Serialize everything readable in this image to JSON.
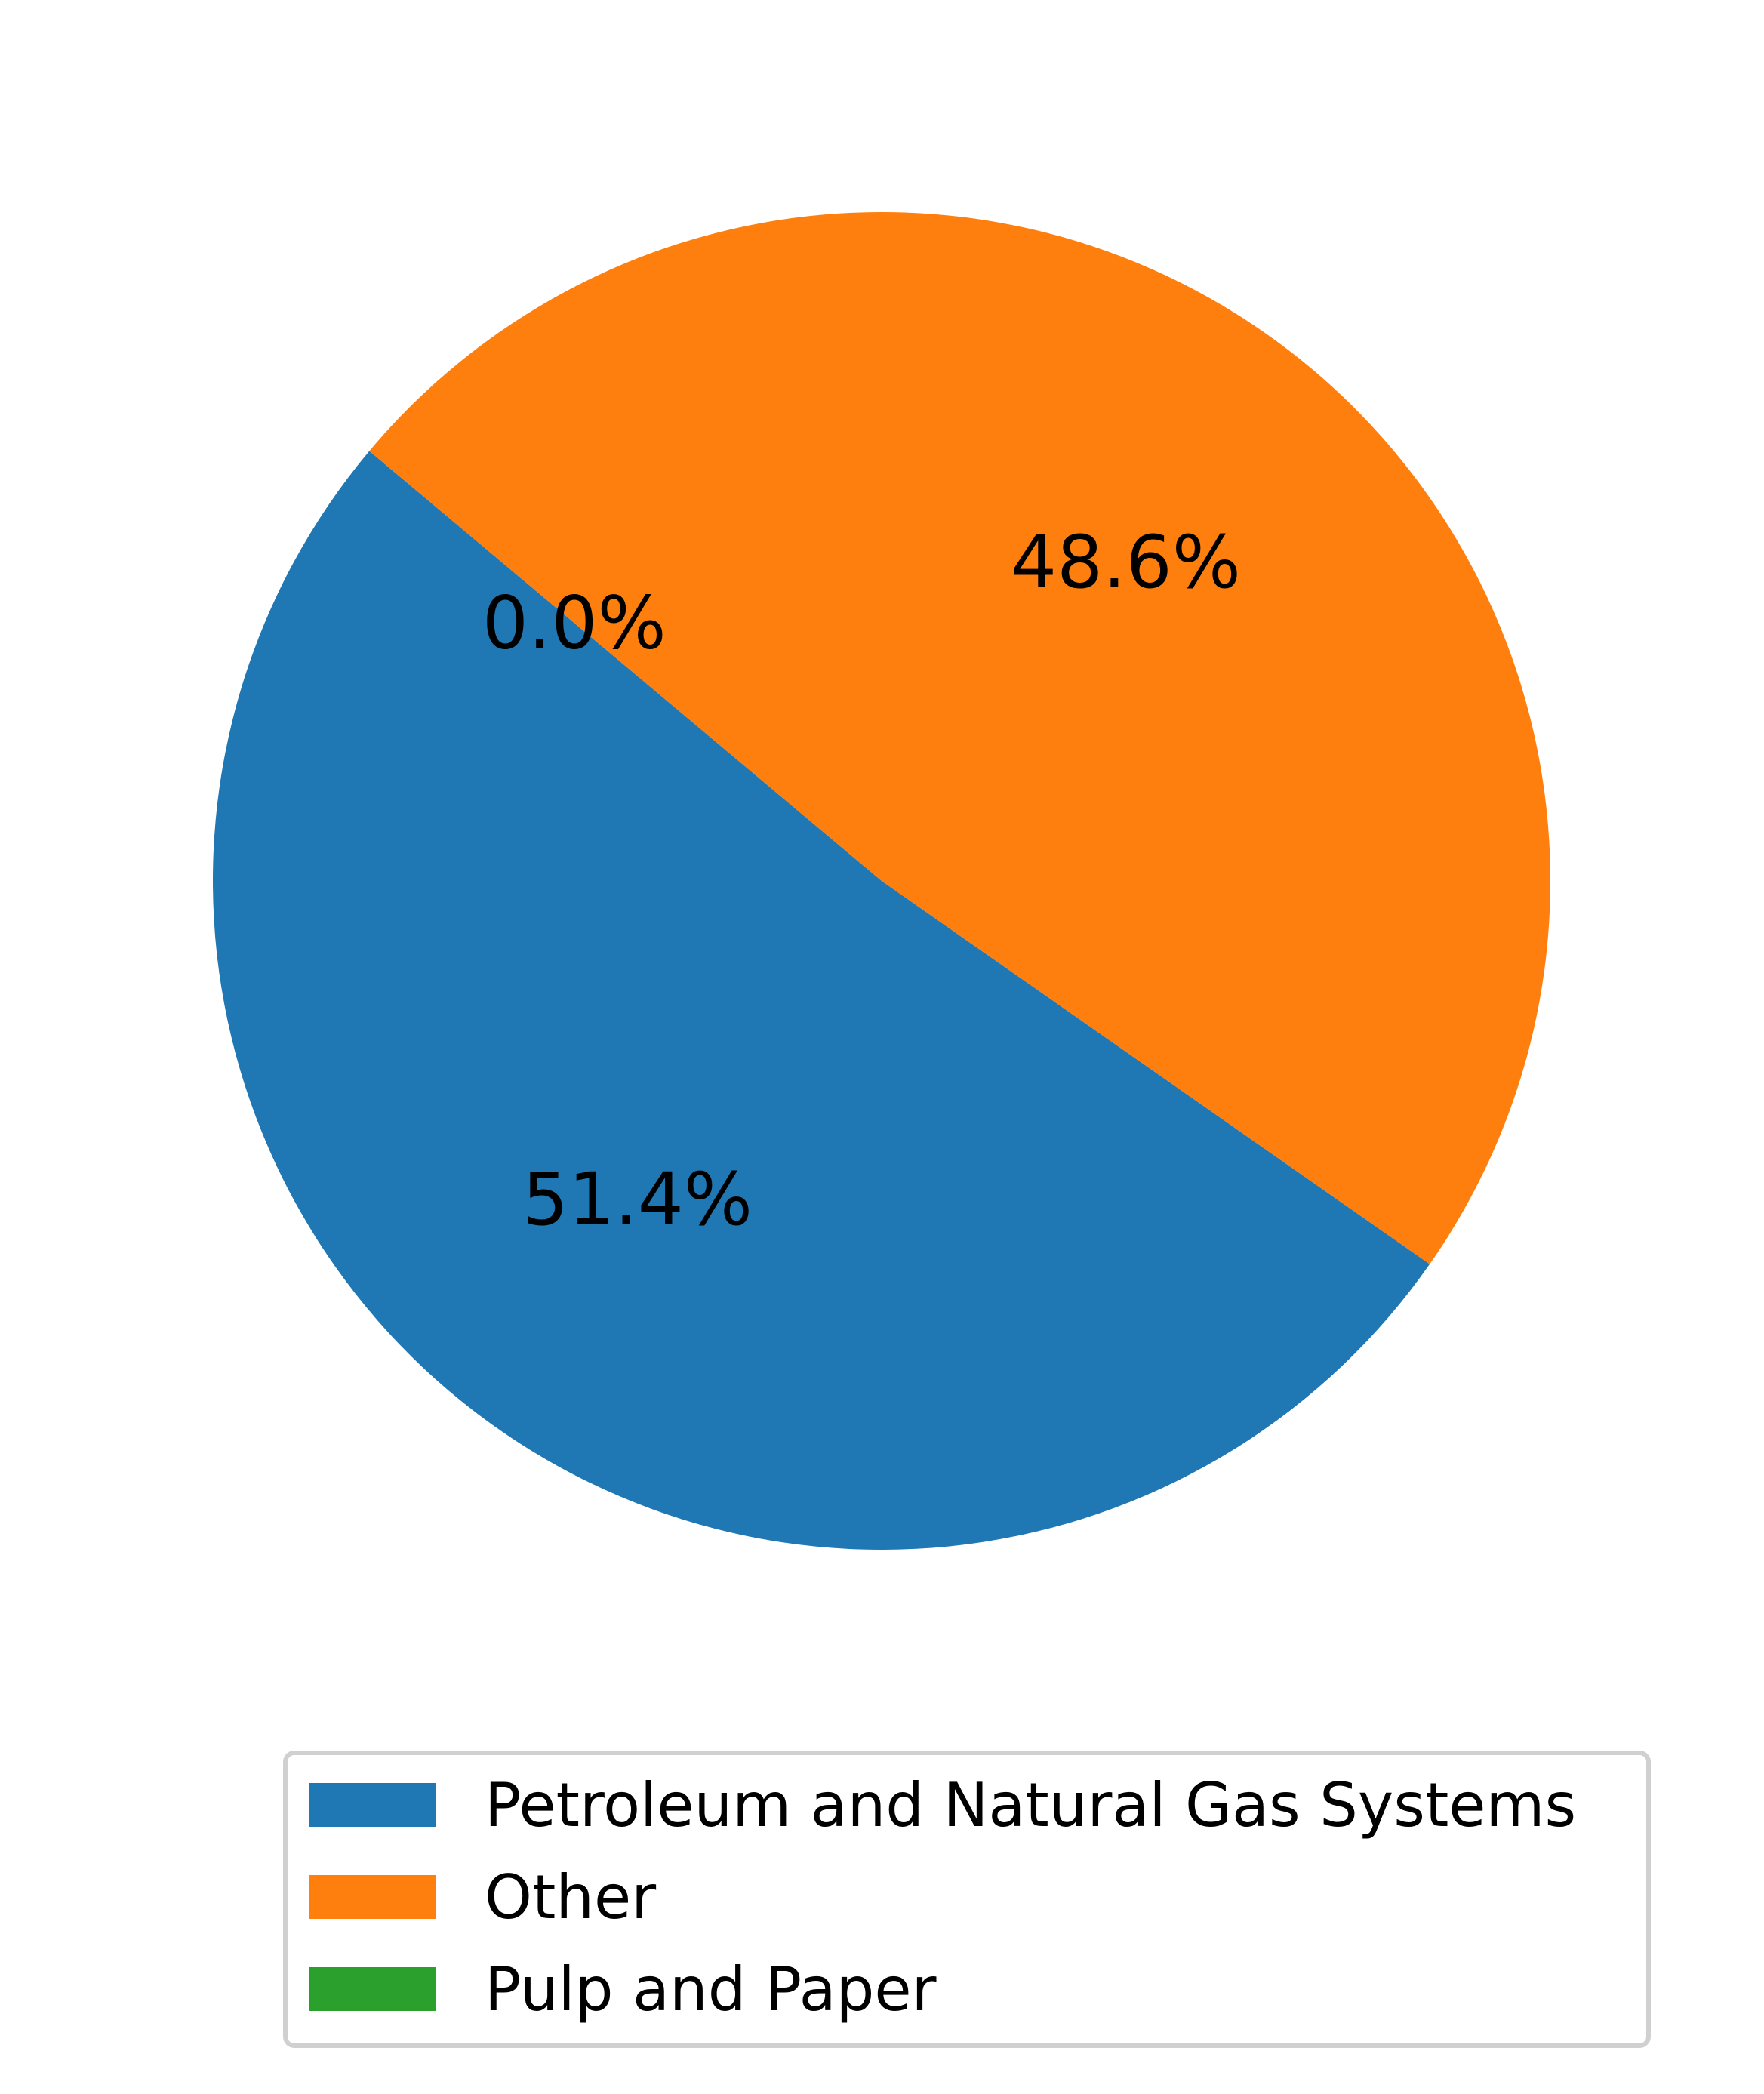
{
  "chart_data": {
    "type": "pie",
    "slices": [
      {
        "label": "Petroleum and Natural Gas Systems",
        "value": 51.4,
        "pct_label": "51.4%",
        "color": "#1f77b4"
      },
      {
        "label": "Other",
        "value": 48.6,
        "pct_label": "48.6%",
        "color": "#ff7f0e"
      },
      {
        "label": "Pulp and Paper",
        "value": 0.0,
        "pct_label": "0.0%",
        "color": "#2ca02c"
      }
    ],
    "legend_position": "bottom-center",
    "start_angle_deg": 140,
    "direction": "counterclockwise"
  }
}
